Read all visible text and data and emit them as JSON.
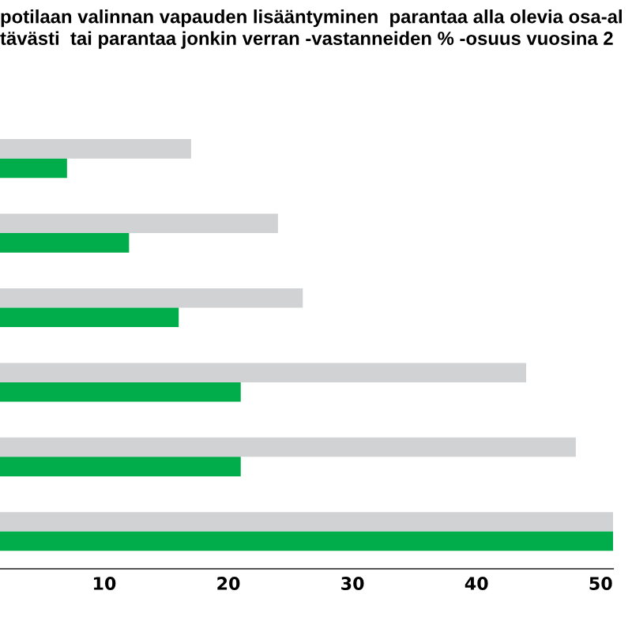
{
  "chart_data": {
    "type": "bar",
    "orientation": "horizontal",
    "title": "potilaan valinnan vapauden lisääntyminen  parantaa alla olevia osa-al\ntävästi  tai parantaa jonkin verran -vastanneiden % -osuus vuosina 2",
    "categories": [
      null,
      null,
      null,
      null,
      null,
      null
    ],
    "series": [
      {
        "color": "#d1d2d4",
        "values": [
          17,
          24,
          26,
          44,
          48,
          51
        ]
      },
      {
        "color": "#00ad4a",
        "values": [
          7,
          12,
          16,
          21,
          21,
          51
        ]
      }
    ],
    "xlim": [
      1.6,
      51
    ],
    "xticks": [
      10,
      20,
      30,
      40,
      50
    ],
    "grid": false,
    "legend": false
  }
}
